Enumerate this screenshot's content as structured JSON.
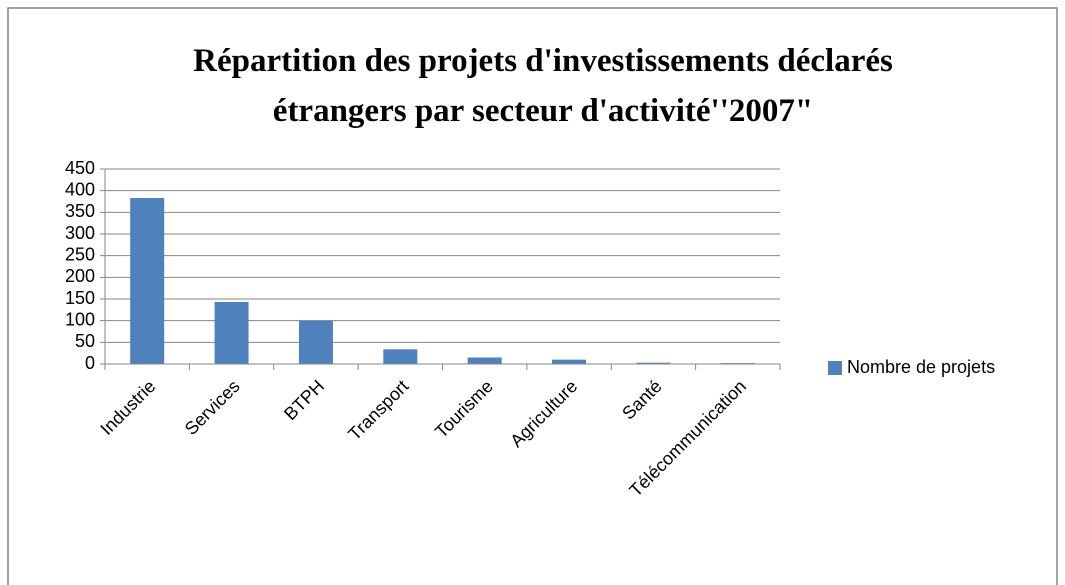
{
  "chart_data": {
    "type": "bar",
    "title": "Répartition des projets d'investissements déclarés étrangers par secteur d'activité''2007\"",
    "categories": [
      "Industrie",
      "Services",
      "BTPH",
      "Transport",
      "Tourisme",
      "Agriculture",
      "Santé",
      "Télécommunication"
    ],
    "series": [
      {
        "name": "Nombre de projets",
        "color": "#4f81bd",
        "values": [
          383,
          143,
          100,
          34,
          15,
          10,
          3,
          2
        ]
      }
    ],
    "ylim": [
      0,
      450
    ],
    "yticks": [
      0,
      50,
      100,
      150,
      200,
      250,
      300,
      350,
      400,
      450
    ],
    "grid": true,
    "legend": "right"
  }
}
